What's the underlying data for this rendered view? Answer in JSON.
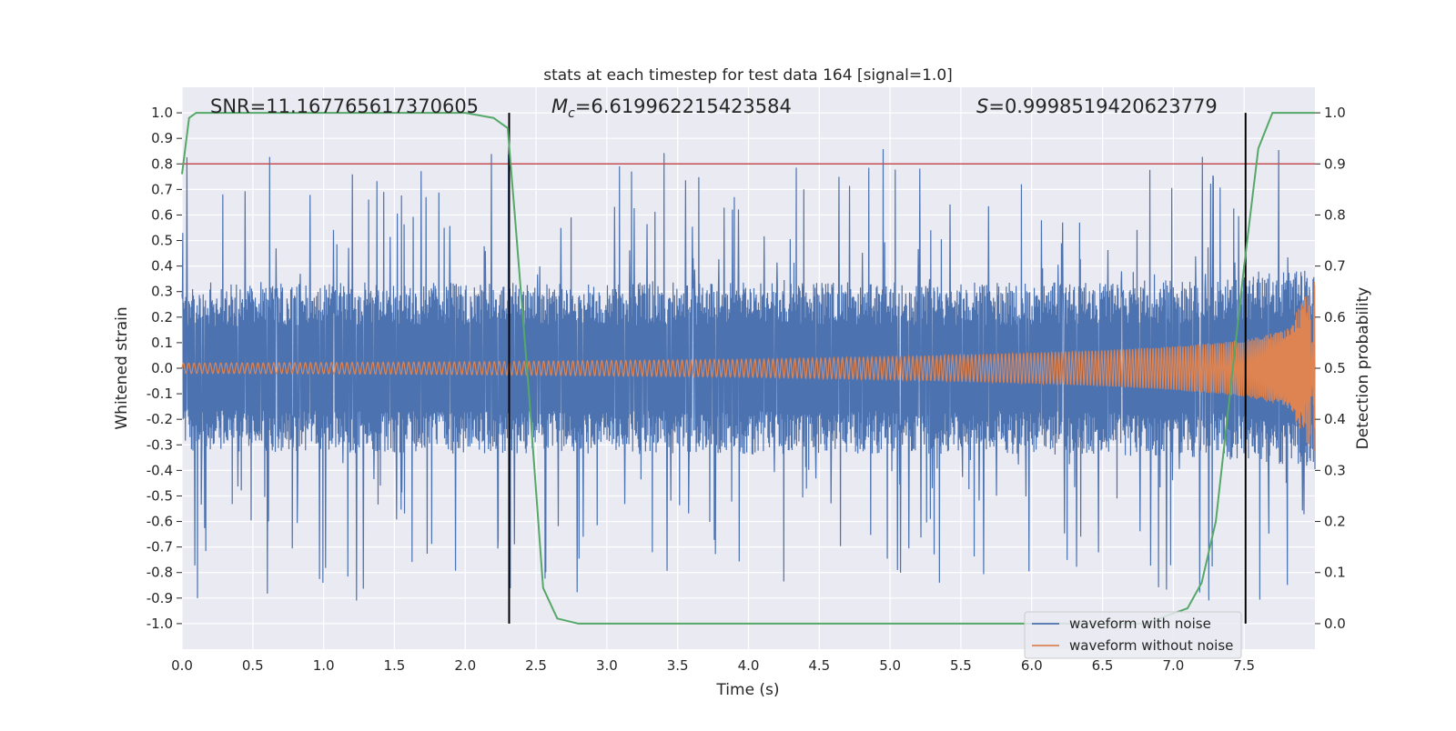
{
  "chart_data": {
    "type": "line",
    "title": "stats at each timestep for test data 164 [signal=1.0]",
    "xlabel": "Time (s)",
    "ylabel": "Whitened strain",
    "y2label": "Detection probability",
    "xlim": [
      0.0,
      8.0
    ],
    "ylim": [
      -1.1,
      1.1
    ],
    "y2lim": [
      -0.05,
      1.05
    ],
    "x_ticks": [
      "0.0",
      "0.5",
      "1.0",
      "1.5",
      "2.0",
      "2.5",
      "3.0",
      "3.5",
      "4.0",
      "4.5",
      "5.0",
      "5.5",
      "6.0",
      "6.5",
      "7.0",
      "7.5"
    ],
    "y_ticks": [
      "1.0",
      "0.9",
      "0.8",
      "0.7",
      "0.6",
      "0.5",
      "0.4",
      "0.3",
      "0.2",
      "0.1",
      "0.0",
      "-0.1",
      "-0.2",
      "-0.3",
      "-0.4",
      "-0.5",
      "-0.6",
      "-0.7",
      "-0.8",
      "-0.9",
      "-1.0"
    ],
    "y2_ticks": [
      "1.0",
      "0.9",
      "0.8",
      "0.7",
      "0.6",
      "0.5",
      "0.4",
      "0.3",
      "0.2",
      "0.1",
      "0.0"
    ],
    "grid": true,
    "annotations": {
      "snr": "SNR=11.167765617370605",
      "mc_symbol": "M",
      "mc_sub": "c",
      "mc_value": "=6.619962215423584",
      "s_symbol": "S",
      "s_value": "=0.9998519420623779"
    },
    "threshold": {
      "y2": 0.9,
      "color": "#c44e52"
    },
    "vlines_x": [
      2.31,
      7.51
    ],
    "legend": {
      "placement": "lower-right",
      "entries": [
        {
          "label": "waveform with noise",
          "color": "#4c72b0"
        },
        {
          "label": "waveform without noise",
          "color": "#dd8452"
        }
      ]
    },
    "series": [
      {
        "name": "waveform with noise",
        "color": "#4c72b0",
        "style": "dense-noise",
        "envelope_x": [
          0.0,
          1.0,
          2.0,
          3.0,
          4.0,
          5.0,
          6.0,
          7.0,
          7.5,
          8.0
        ],
        "envelope_upper": [
          0.27,
          0.28,
          0.28,
          0.28,
          0.28,
          0.28,
          0.28,
          0.29,
          0.3,
          0.33
        ],
        "envelope_lower": [
          -0.27,
          -0.28,
          -0.28,
          -0.28,
          -0.28,
          -0.28,
          -0.28,
          -0.29,
          -0.3,
          -0.33
        ],
        "spike_max": 0.86,
        "spike_min": -0.91
      },
      {
        "name": "waveform without noise",
        "color": "#dd8452",
        "style": "chirp",
        "amplitude_x": [
          0.0,
          1.0,
          2.0,
          3.0,
          4.0,
          5.0,
          6.0,
          6.5,
          7.0,
          7.5,
          7.8,
          8.0
        ],
        "amplitude": [
          0.02,
          0.022,
          0.025,
          0.03,
          0.035,
          0.045,
          0.06,
          0.07,
          0.085,
          0.11,
          0.15,
          0.35
        ]
      },
      {
        "name": "detection probability",
        "axis": "y2",
        "color": "#55a868",
        "x": [
          0.0,
          0.05,
          0.1,
          0.2,
          0.5,
          1.0,
          1.5,
          2.0,
          2.2,
          2.3,
          2.35,
          2.45,
          2.55,
          2.65,
          2.8,
          3.0,
          4.0,
          5.0,
          6.0,
          6.8,
          7.1,
          7.2,
          7.3,
          7.4,
          7.5,
          7.6,
          7.7,
          8.0
        ],
        "y": [
          0.88,
          0.99,
          1.0,
          1.0,
          1.0,
          1.0,
          1.0,
          1.0,
          0.99,
          0.97,
          0.8,
          0.45,
          0.07,
          0.01,
          0.0,
          0.0,
          0.0,
          0.0,
          0.0,
          0.0,
          0.03,
          0.08,
          0.2,
          0.45,
          0.7,
          0.93,
          1.0,
          1.0
        ]
      }
    ]
  }
}
